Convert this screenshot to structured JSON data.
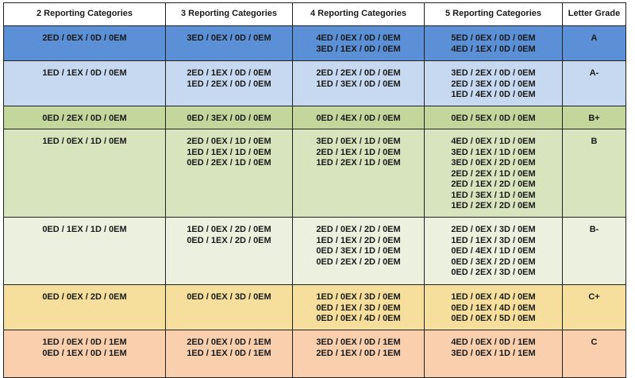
{
  "headers": [
    "2 Reporting Categories",
    "3 Reporting Categories",
    "4 Reporting Categories",
    "5 Reporting Categories",
    "Letter Grade"
  ],
  "rows": [
    {
      "color": "#5b8fd6",
      "height": 44,
      "cells": [
        [
          "2ED / 0EX / 0D / 0EM"
        ],
        [
          "3ED / 0EX / 0D / 0EM"
        ],
        [
          "4ED / 0EX / 0D / 0EM",
          "3ED / 1EX / 0D / 0EM"
        ],
        [
          "5ED / 0EX / 0D / 0EM",
          "4ED / 1EX / 0D / 0EM"
        ]
      ],
      "grade": "A"
    },
    {
      "color": "#c6d9f1",
      "height": 57,
      "cells": [
        [
          "1ED / 1EX / 0D / 0EM"
        ],
        [
          "2ED / 1EX / 0D / 0EM",
          "1ED / 2EX / 0D / 0EM"
        ],
        [
          "2ED / 2EX / 0D / 0EM",
          "1ED / 3EX / 0D / 0EM"
        ],
        [
          "3ED / 2EX / 0D / 0EM",
          "2ED / 3EX / 0D / 0EM",
          "1ED / 4EX / 0D / 0EM"
        ]
      ],
      "grade": "A-"
    },
    {
      "color": "#c3d69b",
      "height": 29,
      "cells": [
        [
          "0ED / 2EX / 0D / 0EM"
        ],
        [
          "0ED / 3EX / 0D / 0EM"
        ],
        [
          "0ED / 4EX / 0D / 0EM"
        ],
        [
          "0ED / 5EX / 0D / 0EM"
        ]
      ],
      "grade": "B+"
    },
    {
      "color": "#d7e4bd",
      "height": 111,
      "cells": [
        [
          "1ED / 0EX / 1D / 0EM"
        ],
        [
          "2ED / 0EX / 1D / 0EM",
          "1ED / 1EX / 1D / 0EM",
          "0ED / 2EX / 1D / 0EM"
        ],
        [
          "3ED / 0EX / 1D / 0EM",
          "2ED / 1EX / 1D / 0EM",
          "1ED / 2EX / 1D / 0EM"
        ],
        [
          "4ED / 0EX / 1D / 0EM",
          "3ED / 1EX / 1D / 0EM",
          "3ED / 0EX / 2D / 0EM",
          "2ED / 2EX / 1D / 0EM",
          "2ED / 1EX / 2D / 0EM",
          "1ED / 3EX / 1D / 0EM",
          "1ED / 2EX / 2D / 0EM"
        ]
      ],
      "grade": "B"
    },
    {
      "color": "#ebf1de",
      "height": 85,
      "cells": [
        [
          "0ED / 1EX / 1D / 0EM"
        ],
        [
          "1ED / 0EX / 2D / 0EM",
          "0ED / 1EX / 2D / 0EM"
        ],
        [
          "2ED / 0EX / 2D / 0EM",
          "1ED / 1EX / 2D / 0EM",
          "0ED / 3EX / 1D / 0EM",
          "0ED / 2EX / 2D / 0EM"
        ],
        [
          "2ED / 0EX / 3D / 0EM",
          "1ED / 1EX / 3D / 0EM",
          "0ED / 4EX / 1D / 0EM",
          "0ED / 3EX / 2D / 0EM",
          "0ED / 2EX / 3D / 0EM"
        ]
      ],
      "grade": "B-"
    },
    {
      "color": "#f6df9c",
      "height": 57,
      "cells": [
        [
          "0ED / 0EX / 2D / 0EM"
        ],
        [
          "0ED / 0EX / 3D / 0EM"
        ],
        [
          "1ED / 0EX / 3D / 0EM",
          "0ED / 1EX / 3D / 0EM",
          "0ED / 0EX / 4D / 0EM"
        ],
        [
          "1ED / 0EX / 4D / 0EM",
          "0ED / 1EX / 4D / 0EM",
          "0ED / 0EX / 5D / 0EM"
        ]
      ],
      "grade": "C+"
    },
    {
      "color": "#f9cfae",
      "height": 60,
      "cells": [
        [
          "1ED / 0EX / 0D / 1EM",
          "0ED / 1EX / 0D / 1EM"
        ],
        [
          "2ED / 0EX / 0D / 1EM",
          "1ED / 1EX / 0D / 1EM"
        ],
        [
          "3ED / 0EX / 0D / 1EM",
          "2ED / 1EX / 0D / 1EM"
        ],
        [
          "4ED / 0EX / 0D / 1EM",
          "3ED / 0EX / 1D / 1EM"
        ]
      ],
      "grade": "C"
    }
  ]
}
